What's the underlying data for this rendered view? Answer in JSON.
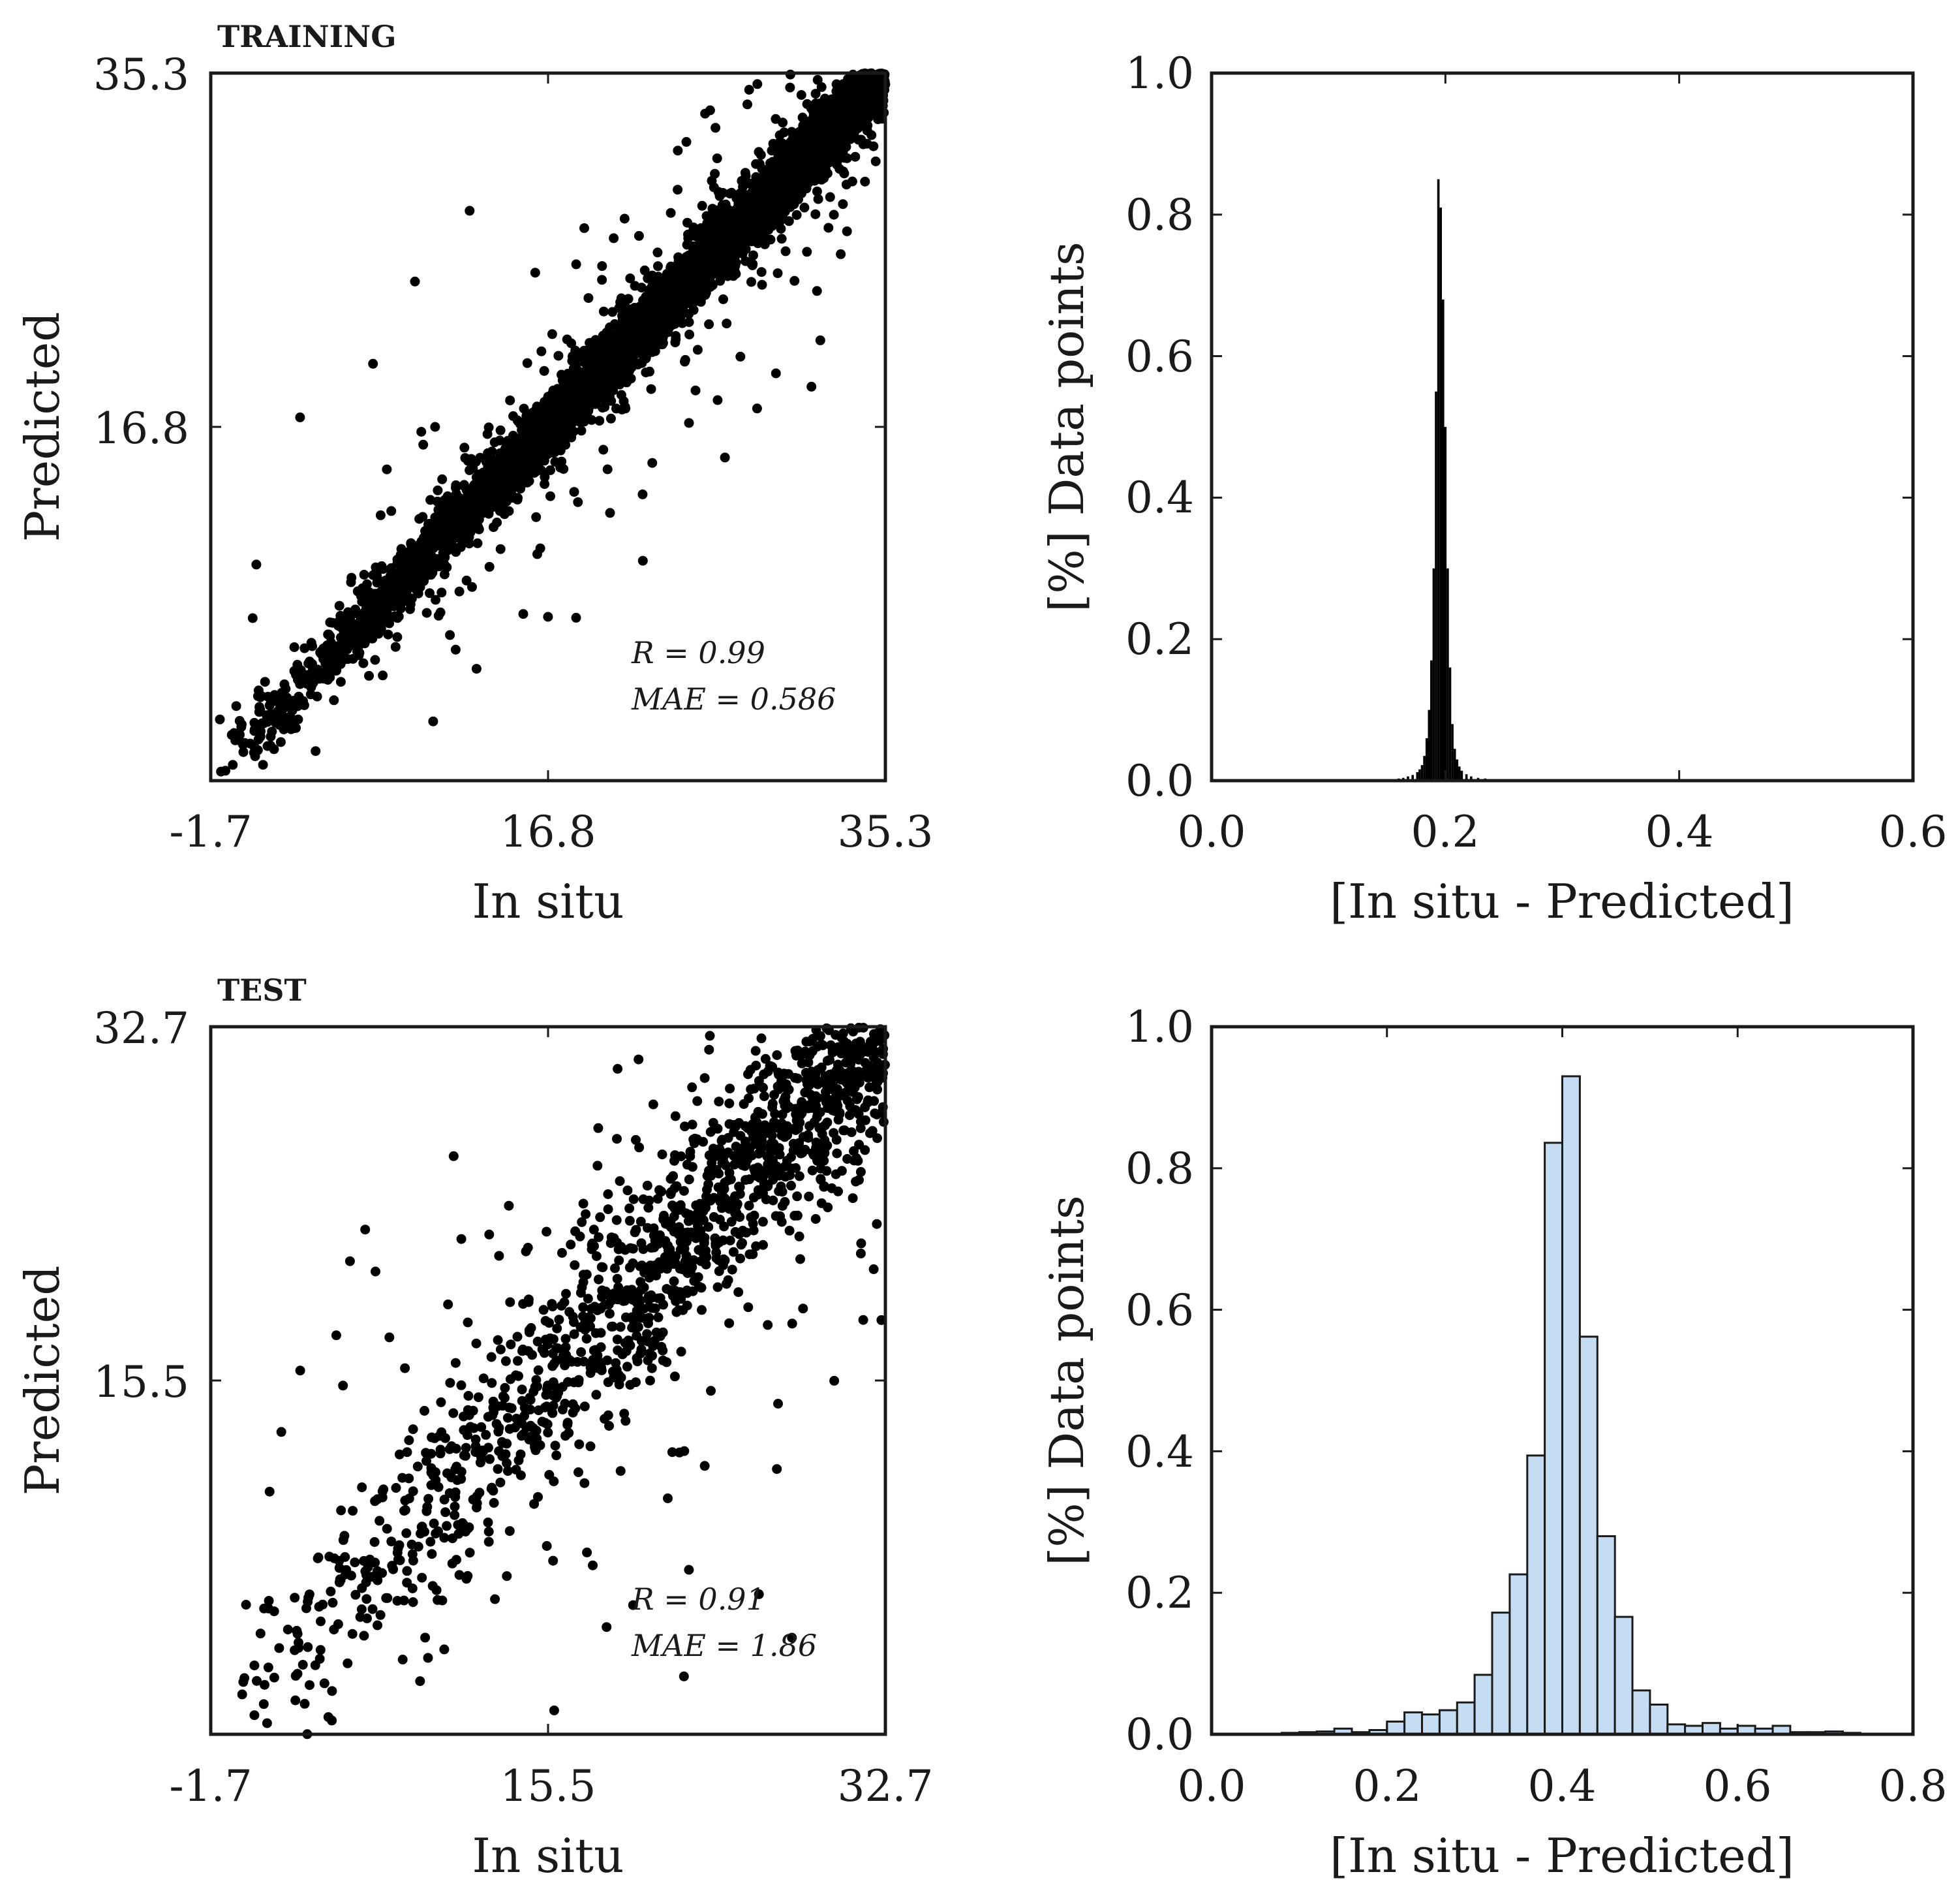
{
  "chart_data": [
    {
      "type": "scatter",
      "panel_tag": "TRAINING",
      "xlabel": "In situ",
      "ylabel": "Predicted",
      "xlim": [
        -1.7,
        35.3
      ],
      "ylim": [
        -1.7,
        35.3
      ],
      "xticks": [
        "-1.7",
        "16.8",
        "35.3"
      ],
      "yticks": [
        "35.3",
        "16.8"
      ],
      "stats": [
        "R = 0.99",
        "MAE = 0.586"
      ],
      "marker_color": "#000000",
      "point_summary": {
        "count": 5000,
        "slope": 1.0,
        "intercept": 0.0,
        "spread": 0.9,
        "outlier_fraction": 0.06
      },
      "points": [
        [
          12.5,
          28.1
        ],
        [
          3.2,
          17.3
        ],
        [
          9.5,
          24.4
        ],
        [
          0.8,
          9.6
        ],
        [
          0.6,
          6.8
        ],
        [
          7.2,
          20.1
        ],
        [
          8.2,
          12.4
        ],
        [
          20.2,
          12.3
        ],
        [
          22.0,
          9.8
        ],
        [
          26.5,
          15.2
        ],
        [
          29.3,
          19.6
        ],
        [
          -1.2,
          1.5
        ],
        [
          -0.3,
          2.2
        ],
        [
          10.5,
          1.4
        ],
        [
          26.1,
          18.2
        ]
      ]
    },
    {
      "type": "bar",
      "xlabel": "[In situ - Predicted]",
      "ylabel": "[%] Data points",
      "xlim": [
        0.0,
        0.6
      ],
      "ylim": [
        0.0,
        1.0
      ],
      "xticks": [
        "0.0",
        "0.2",
        "0.4",
        "0.6"
      ],
      "yticks": [
        "0.0",
        "0.2",
        "0.4",
        "0.6",
        "0.8",
        "1.0"
      ],
      "bin_width": 0.002,
      "fill_color": "#000000",
      "bins": [
        [
          0.12,
          0.002
        ],
        [
          0.13,
          0.002
        ],
        [
          0.14,
          0.002
        ],
        [
          0.15,
          0.002
        ],
        [
          0.16,
          0.003
        ],
        [
          0.164,
          0.004
        ],
        [
          0.168,
          0.006
        ],
        [
          0.172,
          0.008
        ],
        [
          0.176,
          0.012
        ],
        [
          0.178,
          0.016
        ],
        [
          0.18,
          0.022
        ],
        [
          0.182,
          0.035
        ],
        [
          0.184,
          0.06
        ],
        [
          0.186,
          0.1
        ],
        [
          0.188,
          0.17
        ],
        [
          0.19,
          0.3
        ],
        [
          0.192,
          0.55
        ],
        [
          0.194,
          0.85
        ],
        [
          0.196,
          0.81
        ],
        [
          0.198,
          0.68
        ],
        [
          0.2,
          0.5
        ],
        [
          0.202,
          0.3
        ],
        [
          0.204,
          0.16
        ],
        [
          0.206,
          0.08
        ],
        [
          0.208,
          0.045
        ],
        [
          0.21,
          0.03
        ],
        [
          0.212,
          0.02
        ],
        [
          0.214,
          0.014
        ],
        [
          0.218,
          0.009
        ],
        [
          0.222,
          0.006
        ],
        [
          0.228,
          0.004
        ],
        [
          0.234,
          0.003
        ],
        [
          0.242,
          0.002
        ],
        [
          0.25,
          0.002
        ],
        [
          0.26,
          0.001
        ],
        [
          0.27,
          0.001
        ],
        [
          0.28,
          0.001
        ]
      ]
    },
    {
      "type": "scatter",
      "panel_tag": "TEST",
      "xlabel": "In situ",
      "ylabel": "Predicted",
      "xlim": [
        -1.7,
        32.7
      ],
      "ylim": [
        -1.7,
        32.7
      ],
      "xticks": [
        "-1.7",
        "15.5",
        "32.7"
      ],
      "yticks": [
        "32.7",
        "15.5"
      ],
      "stats": [
        "R = 0.91",
        "MAE = 1.86"
      ],
      "marker_color": "#000000",
      "point_summary": {
        "count": 1500,
        "slope": 1.0,
        "intercept": 0.0,
        "spread": 2.5,
        "outlier_fraction": 0.1
      },
      "points": [
        [
          5.4,
          21.3
        ],
        [
          4.7,
          17.7
        ],
        [
          6.7,
          20.8
        ],
        [
          8.2,
          16.1
        ],
        [
          1.9,
          13.0
        ],
        [
          1.3,
          10.1
        ],
        [
          10.4,
          19.2
        ],
        [
          12.5,
          22.6
        ],
        [
          13.5,
          24.0
        ],
        [
          17.3,
          24.1
        ],
        [
          19.0,
          23.3
        ],
        [
          23.8,
          15.0
        ],
        [
          22.2,
          12.0
        ],
        [
          11.4,
          6.0
        ],
        [
          6.8,
          3.6
        ],
        [
          0.1,
          4.6
        ],
        [
          3.9,
          2.4
        ],
        [
          26.7,
          18.2
        ],
        [
          28.5,
          19.0
        ]
      ]
    },
    {
      "type": "bar",
      "xlabel": "[In situ - Predicted]",
      "ylabel": "[%] Data points",
      "xlim": [
        0.0,
        0.8
      ],
      "ylim": [
        0.0,
        1.0
      ],
      "xticks": [
        "0.0",
        "0.2",
        "0.4",
        "0.6",
        "0.8"
      ],
      "yticks": [
        "0.0",
        "0.2",
        "0.4",
        "0.6",
        "0.8",
        "1.0"
      ],
      "bin_width": 0.02,
      "fill_color": "#c6dcf2",
      "bins": [
        [
          0.09,
          0.002
        ],
        [
          0.11,
          0.003
        ],
        [
          0.13,
          0.004
        ],
        [
          0.15,
          0.008
        ],
        [
          0.17,
          0.003
        ],
        [
          0.19,
          0.006
        ],
        [
          0.21,
          0.018
        ],
        [
          0.23,
          0.031
        ],
        [
          0.25,
          0.028
        ],
        [
          0.27,
          0.034
        ],
        [
          0.29,
          0.045
        ],
        [
          0.31,
          0.084
        ],
        [
          0.33,
          0.172
        ],
        [
          0.35,
          0.226
        ],
        [
          0.37,
          0.394
        ],
        [
          0.39,
          0.836
        ],
        [
          0.41,
          0.93
        ],
        [
          0.43,
          0.562
        ],
        [
          0.45,
          0.28
        ],
        [
          0.47,
          0.166
        ],
        [
          0.49,
          0.062
        ],
        [
          0.51,
          0.042
        ],
        [
          0.53,
          0.014
        ],
        [
          0.55,
          0.012
        ],
        [
          0.57,
          0.016
        ],
        [
          0.59,
          0.008
        ],
        [
          0.61,
          0.012
        ],
        [
          0.63,
          0.008
        ],
        [
          0.65,
          0.012
        ],
        [
          0.67,
          0.003
        ],
        [
          0.69,
          0.003
        ],
        [
          0.71,
          0.004
        ],
        [
          0.73,
          0.002
        ]
      ]
    }
  ]
}
